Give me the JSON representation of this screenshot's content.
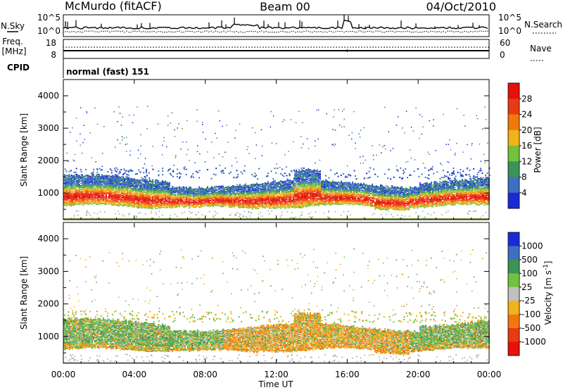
{
  "header": {
    "station": "McMurdo (fitACF)",
    "beam": "Beam 00",
    "date": "04/Oct/2010"
  },
  "summary_panels": {
    "nsky": {
      "label": "N.Sky",
      "tick_top": "10^5",
      "tick_bottom": "10^0"
    },
    "nsearch": {
      "label": "N.Search",
      "tick_top": "10^5",
      "tick_bottom": "10^0"
    },
    "freq": {
      "label_line1": "Freq.",
      "label_line2": "[MHz]",
      "tick_top": "18",
      "tick_bottom": "8"
    },
    "nave": {
      "label": "Nave",
      "tick_top": "60",
      "tick_bottom": "0"
    },
    "cpid": {
      "label": "CPID",
      "mode": "normal (fast) 151"
    }
  },
  "chart_data": [
    {
      "type": "heatmap",
      "quantity": "Power",
      "ylabel": "Slant Range [km]",
      "ylim": [
        180,
        4500
      ],
      "yticks": [
        1000,
        2000,
        3000,
        4000
      ],
      "colorbar_label": "Power [dB]",
      "colorbar_ticks": [
        "4",
        "8",
        "12",
        "16",
        "20",
        "24",
        "28"
      ],
      "colorbar_colors": [
        "#1a2bd6",
        "#3e6fc0",
        "#3a9457",
        "#72c23e",
        "#f2b21a",
        "#f2780c",
        "#e83b12",
        "#e8100a"
      ],
      "xlim_hours": [
        0,
        24
      ],
      "bands": [
        {
          "x": [
            0,
            24
          ],
          "y": [
            550,
            1300
          ],
          "note": "main echo band, strongest 600-1000 km"
        }
      ]
    },
    {
      "type": "heatmap",
      "quantity": "Velocity",
      "ylabel": "Slant Range [km]",
      "ylim": [
        180,
        4500
      ],
      "yticks": [
        1000,
        2000,
        3000,
        4000
      ],
      "colorbar_label": "Velocity [m s^-1]",
      "colorbar_ticks": [
        "1000",
        "500",
        "100",
        "25",
        "-25",
        "-100",
        "-500",
        "-1000"
      ],
      "colorbar_colors": [
        "#1a2bd6",
        "#3e6fc0",
        "#3a9457",
        "#72c23e",
        "#c0c0c0",
        "#f2b21a",
        "#f2780c",
        "#e83b12",
        "#e8100a"
      ],
      "xlim_hours": [
        0,
        24
      ],
      "bands": [
        {
          "x": [
            0,
            24
          ],
          "y": [
            550,
            1400
          ],
          "note": "mixed green (toward) and orange (away) velocities"
        }
      ]
    }
  ],
  "xaxis": {
    "ticks": [
      "00:00",
      "04:00",
      "08:00",
      "12:00",
      "16:00",
      "20:00",
      "00:00"
    ],
    "label": "Time UT"
  }
}
